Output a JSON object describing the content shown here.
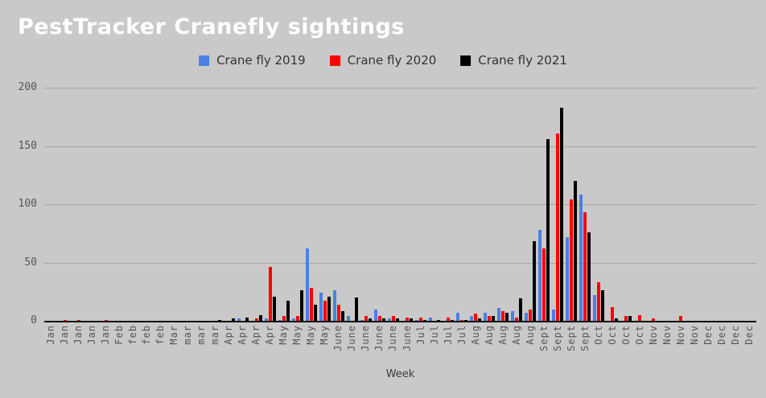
{
  "title": "PestTracker Cranefly sightings",
  "legend": [
    {
      "label": "Crane fly 2019",
      "color": "#4a80e4"
    },
    {
      "label": "Crane fly 2020",
      "color": "#fe0000"
    },
    {
      "label": "Crane fly 2021",
      "color": "#000000"
    }
  ],
  "x_axis_title": "Week",
  "chart_data": {
    "type": "bar",
    "title": "PestTracker Cranefly sightings",
    "xlabel": "Week",
    "ylabel": "",
    "ylim": [
      0,
      200
    ],
    "yticks": [
      0,
      50,
      100,
      150,
      200
    ],
    "grid": true,
    "legend_position": "top",
    "categories": [
      "Jan",
      "Jan",
      "Jan",
      "Jan",
      "Jan",
      "Feb",
      "feb",
      "feb",
      "feb",
      "Mar",
      "mar",
      "mar",
      "mar",
      "Apr",
      "Apr",
      "Apr",
      "Apr",
      "May",
      "May",
      "May",
      "May",
      "June",
      "June",
      "June",
      "June",
      "June",
      "June",
      "Jul",
      "Jul",
      "Jul",
      "Jul",
      "Aug",
      "Aug",
      "Aug",
      "Aug",
      "Aug",
      "Sept",
      "Sept",
      "Sept",
      "Sept",
      "Oct",
      "Oct",
      "Oct",
      "Oct",
      "Nov",
      "Nov",
      "Nov",
      "Nov",
      "Dec",
      "Dec",
      "Dec",
      "Dec"
    ],
    "series": [
      {
        "name": "Crane fly 2019",
        "color": "#4a80e4",
        "values": [
          0,
          0,
          0,
          0,
          0,
          0,
          0,
          0,
          0,
          0,
          0,
          0,
          0,
          0,
          2,
          0,
          2,
          1,
          2,
          62,
          24,
          26,
          4,
          1,
          10,
          2,
          0,
          1,
          3,
          0,
          7,
          4,
          7,
          11,
          8,
          7,
          78,
          10,
          72,
          108,
          22,
          0,
          0,
          0,
          0,
          0,
          0,
          0,
          0,
          0,
          0,
          0
        ]
      },
      {
        "name": "Crane fly 2020",
        "color": "#fe0000",
        "values": [
          0,
          1,
          1,
          0,
          1,
          0,
          0,
          0,
          0,
          0,
          0,
          0,
          0,
          0,
          0,
          2,
          46,
          4,
          4,
          28,
          17,
          14,
          0,
          4,
          4,
          4,
          3,
          3,
          0,
          3,
          1,
          6,
          4,
          8,
          3,
          10,
          62,
          161,
          104,
          93,
          33,
          12,
          4,
          5,
          2,
          0,
          4,
          0,
          0,
          0,
          0,
          0
        ]
      },
      {
        "name": "Crane fly 2021",
        "color": "#000000",
        "values": [
          0,
          0,
          0,
          0,
          0,
          0,
          0,
          0,
          0,
          0,
          0,
          0,
          1,
          2,
          3,
          5,
          21,
          17,
          26,
          14,
          21,
          8,
          20,
          2,
          2,
          2,
          2,
          1,
          1,
          1,
          1,
          2,
          4,
          7,
          19,
          68,
          156,
          183,
          120,
          76,
          26,
          2,
          4,
          0,
          0,
          0,
          0,
          0,
          0,
          0,
          0,
          0
        ]
      }
    ]
  }
}
